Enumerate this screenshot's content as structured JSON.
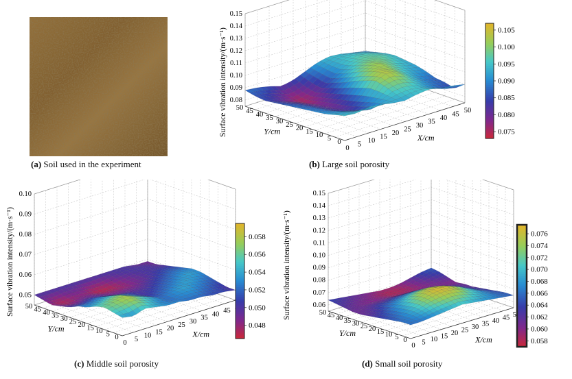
{
  "photo": {
    "caption_letter": "(a)",
    "caption_text": "Soil used in the experiment"
  },
  "chart_data": [
    {
      "id": "b",
      "type": "surface3d",
      "caption_letter": "(b)",
      "caption_text": "Large soil porosity",
      "zlabel": "Surface vibration intensity/(m·s⁻¹)",
      "xlabel": "X/cm",
      "ylabel": "Y/cm",
      "x_ticks": [
        "0",
        "5",
        "10",
        "15",
        "20",
        "25",
        "30",
        "35",
        "40",
        "45",
        "50"
      ],
      "y_ticks": [
        "0",
        "5",
        "10",
        "15",
        "20",
        "25",
        "30",
        "35",
        "40",
        "45",
        "50"
      ],
      "z_ticks": [
        "0.08",
        "0.09",
        "0.10",
        "0.11",
        "0.12",
        "0.13",
        "0.14",
        "0.15"
      ],
      "zlim": [
        0.075,
        0.15
      ],
      "colorbar": {
        "min": 0.073,
        "max": 0.107,
        "ticks": [
          "0.105",
          "0.100",
          "0.095",
          "0.090",
          "0.085",
          "0.080",
          "0.075"
        ],
        "tick_values": [
          0.105,
          0.1,
          0.095,
          0.09,
          0.085,
          0.08,
          0.075
        ]
      },
      "surface_samples": [
        [
          0.095,
          0.094,
          0.096,
          0.095,
          0.093,
          0.092,
          0.094,
          0.095,
          0.093,
          0.092,
          0.09
        ],
        [
          0.093,
          0.092,
          0.09,
          0.088,
          0.092,
          0.095,
          0.096,
          0.094,
          0.09,
          0.086,
          0.084
        ],
        [
          0.091,
          0.09,
          0.087,
          0.085,
          0.09,
          0.098,
          0.1,
          0.097,
          0.092,
          0.088,
          0.086
        ],
        [
          0.09,
          0.088,
          0.084,
          0.082,
          0.088,
          0.1,
          0.104,
          0.1,
          0.094,
          0.089,
          0.087
        ],
        [
          0.089,
          0.087,
          0.083,
          0.08,
          0.086,
          0.097,
          0.103,
          0.101,
          0.096,
          0.092,
          0.09
        ],
        [
          0.088,
          0.086,
          0.082,
          0.079,
          0.084,
          0.094,
          0.1,
          0.102,
          0.098,
          0.094,
          0.092
        ],
        [
          0.087,
          0.085,
          0.081,
          0.078,
          0.082,
          0.09,
          0.097,
          0.1,
          0.099,
          0.096,
          0.093
        ],
        [
          0.086,
          0.083,
          0.08,
          0.076,
          0.08,
          0.087,
          0.093,
          0.097,
          0.098,
          0.097,
          0.094
        ],
        [
          0.085,
          0.082,
          0.078,
          0.075,
          0.078,
          0.084,
          0.09,
          0.095,
          0.097,
          0.096,
          0.093
        ],
        [
          0.086,
          0.084,
          0.081,
          0.077,
          0.08,
          0.086,
          0.091,
          0.094,
          0.095,
          0.094,
          0.091
        ],
        [
          0.088,
          0.087,
          0.085,
          0.082,
          0.084,
          0.088,
          0.092,
          0.094,
          0.093,
          0.091,
          0.089
        ]
      ]
    },
    {
      "id": "c",
      "type": "surface3d",
      "caption_letter": "(c)",
      "caption_text": "Middle soil porosity",
      "zlabel": "Surface vibration intensity/(m·s⁻¹)",
      "xlabel": "X/cm",
      "ylabel": "Y/cm",
      "x_ticks": [
        "0",
        "5",
        "10",
        "15",
        "20",
        "25",
        "30",
        "35",
        "40",
        "45",
        "50"
      ],
      "y_ticks": [
        "0",
        "5",
        "10",
        "15",
        "20",
        "25",
        "30",
        "35",
        "40",
        "45",
        "50"
      ],
      "z_ticks": [
        "0.05",
        "0.06",
        "0.07",
        "0.08",
        "0.09",
        "0.10"
      ],
      "zlim": [
        0.045,
        0.1
      ],
      "colorbar": {
        "min": 0.0465,
        "max": 0.0595,
        "ticks": [
          "0.058",
          "0.056",
          "0.054",
          "0.052",
          "0.050",
          "0.048"
        ],
        "tick_values": [
          0.058,
          0.056,
          0.054,
          0.052,
          0.05,
          0.048
        ]
      },
      "surface_samples": [
        [
          0.054,
          0.053,
          0.055,
          0.054,
          0.053,
          0.053,
          0.052,
          0.052,
          0.051,
          0.051,
          0.05
        ],
        [
          0.055,
          0.056,
          0.057,
          0.055,
          0.053,
          0.052,
          0.053,
          0.053,
          0.052,
          0.051,
          0.05
        ],
        [
          0.056,
          0.057,
          0.058,
          0.056,
          0.054,
          0.052,
          0.053,
          0.054,
          0.053,
          0.052,
          0.051
        ],
        [
          0.055,
          0.056,
          0.057,
          0.055,
          0.053,
          0.051,
          0.052,
          0.053,
          0.054,
          0.053,
          0.052
        ],
        [
          0.053,
          0.054,
          0.055,
          0.054,
          0.052,
          0.05,
          0.051,
          0.052,
          0.053,
          0.054,
          0.053
        ],
        [
          0.052,
          0.052,
          0.053,
          0.052,
          0.051,
          0.05,
          0.05,
          0.051,
          0.052,
          0.053,
          0.053
        ],
        [
          0.05,
          0.05,
          0.051,
          0.05,
          0.049,
          0.049,
          0.049,
          0.05,
          0.051,
          0.052,
          0.052
        ],
        [
          0.049,
          0.048,
          0.049,
          0.049,
          0.048,
          0.048,
          0.048,
          0.049,
          0.05,
          0.051,
          0.051
        ],
        [
          0.048,
          0.047,
          0.048,
          0.048,
          0.047,
          0.047,
          0.048,
          0.049,
          0.05,
          0.05,
          0.05
        ],
        [
          0.049,
          0.048,
          0.049,
          0.049,
          0.048,
          0.048,
          0.049,
          0.05,
          0.05,
          0.05,
          0.049
        ],
        [
          0.05,
          0.05,
          0.05,
          0.05,
          0.05,
          0.05,
          0.05,
          0.05,
          0.05,
          0.049,
          0.049
        ]
      ]
    },
    {
      "id": "d",
      "type": "surface3d",
      "caption_letter": "(d)",
      "caption_text": "Small soil porosity",
      "zlabel": "Surface vibration intensity/(m·s⁻¹)",
      "xlabel": "X/cm",
      "ylabel": "Y/cm",
      "x_ticks": [
        "0",
        "5",
        "10",
        "15",
        "20",
        "25",
        "30",
        "35",
        "40",
        "45",
        "50"
      ],
      "y_ticks": [
        "0",
        "5",
        "10",
        "15",
        "20",
        "25",
        "30",
        "35",
        "40",
        "45",
        "50"
      ],
      "z_ticks": [
        "0.06",
        "0.07",
        "0.08",
        "0.09",
        "0.10",
        "0.11",
        "0.12",
        "0.13",
        "0.14",
        "0.15"
      ],
      "zlim": [
        0.055,
        0.15
      ],
      "colorbar": {
        "min": 0.057,
        "max": 0.0775,
        "ticks": [
          "0.076",
          "0.074",
          "0.072",
          "0.070",
          "0.068",
          "0.066",
          "0.064",
          "0.062",
          "0.060",
          "0.058"
        ],
        "tick_values": [
          0.076,
          0.074,
          0.072,
          0.07,
          0.068,
          0.066,
          0.064,
          0.062,
          0.06,
          0.058
        ]
      },
      "surface_samples": [
        [
          0.066,
          0.066,
          0.067,
          0.068,
          0.069,
          0.07,
          0.069,
          0.068,
          0.067,
          0.066,
          0.065
        ],
        [
          0.066,
          0.067,
          0.069,
          0.071,
          0.072,
          0.073,
          0.072,
          0.07,
          0.068,
          0.066,
          0.065
        ],
        [
          0.065,
          0.067,
          0.07,
          0.073,
          0.075,
          0.076,
          0.075,
          0.072,
          0.069,
          0.066,
          0.064
        ],
        [
          0.064,
          0.066,
          0.069,
          0.073,
          0.076,
          0.077,
          0.076,
          0.073,
          0.069,
          0.065,
          0.063
        ],
        [
          0.063,
          0.065,
          0.068,
          0.071,
          0.074,
          0.075,
          0.074,
          0.071,
          0.067,
          0.064,
          0.062
        ],
        [
          0.062,
          0.063,
          0.066,
          0.068,
          0.07,
          0.071,
          0.07,
          0.068,
          0.065,
          0.063,
          0.061
        ],
        [
          0.061,
          0.062,
          0.064,
          0.065,
          0.066,
          0.067,
          0.066,
          0.065,
          0.063,
          0.062,
          0.061
        ],
        [
          0.061,
          0.061,
          0.062,
          0.062,
          0.063,
          0.063,
          0.063,
          0.062,
          0.061,
          0.06,
          0.06
        ],
        [
          0.062,
          0.061,
          0.06,
          0.06,
          0.06,
          0.059,
          0.059,
          0.059,
          0.06,
          0.061,
          0.062
        ],
        [
          0.063,
          0.062,
          0.061,
          0.06,
          0.059,
          0.058,
          0.058,
          0.059,
          0.061,
          0.063,
          0.064
        ],
        [
          0.064,
          0.063,
          0.062,
          0.061,
          0.06,
          0.059,
          0.059,
          0.06,
          0.062,
          0.064,
          0.065
        ]
      ]
    }
  ]
}
